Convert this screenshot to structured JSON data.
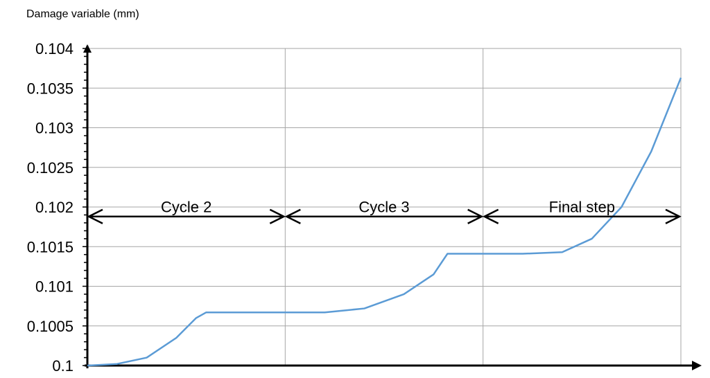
{
  "chart_data": {
    "type": "line",
    "ylabel": "Damage variable (mm)",
    "xlabel": "",
    "title": "",
    "ylim": [
      0.1,
      0.104
    ],
    "yticks": [
      "0.1",
      "0.1005",
      "0.101",
      "0.1015",
      "0.102",
      "0.1025",
      "0.103",
      "0.1035",
      "0.104"
    ],
    "xlim": [
      0,
      3
    ],
    "grid": true,
    "x": [
      0,
      0.15,
      0.3,
      0.45,
      0.55,
      0.6,
      0.9,
      1.2,
      1.4,
      1.6,
      1.75,
      1.82,
      2.0,
      2.2,
      2.4,
      2.55,
      2.7,
      2.85,
      3.0
    ],
    "y": [
      0.1,
      0.10002,
      0.1001,
      0.10035,
      0.1006,
      0.10067,
      0.10067,
      0.10067,
      0.10072,
      0.1009,
      0.10115,
      0.10141,
      0.10141,
      0.10141,
      0.10143,
      0.1016,
      0.102,
      0.1027,
      0.10363
    ],
    "series_color": "#5b9bd5",
    "annotations": [
      {
        "label": "Cycle 2",
        "from": 0,
        "to": 1
      },
      {
        "label": "Cycle 3",
        "from": 1,
        "to": 2
      },
      {
        "label": "Final step",
        "from": 2,
        "to": 3
      }
    ],
    "annotation_y": 0.10188
  }
}
